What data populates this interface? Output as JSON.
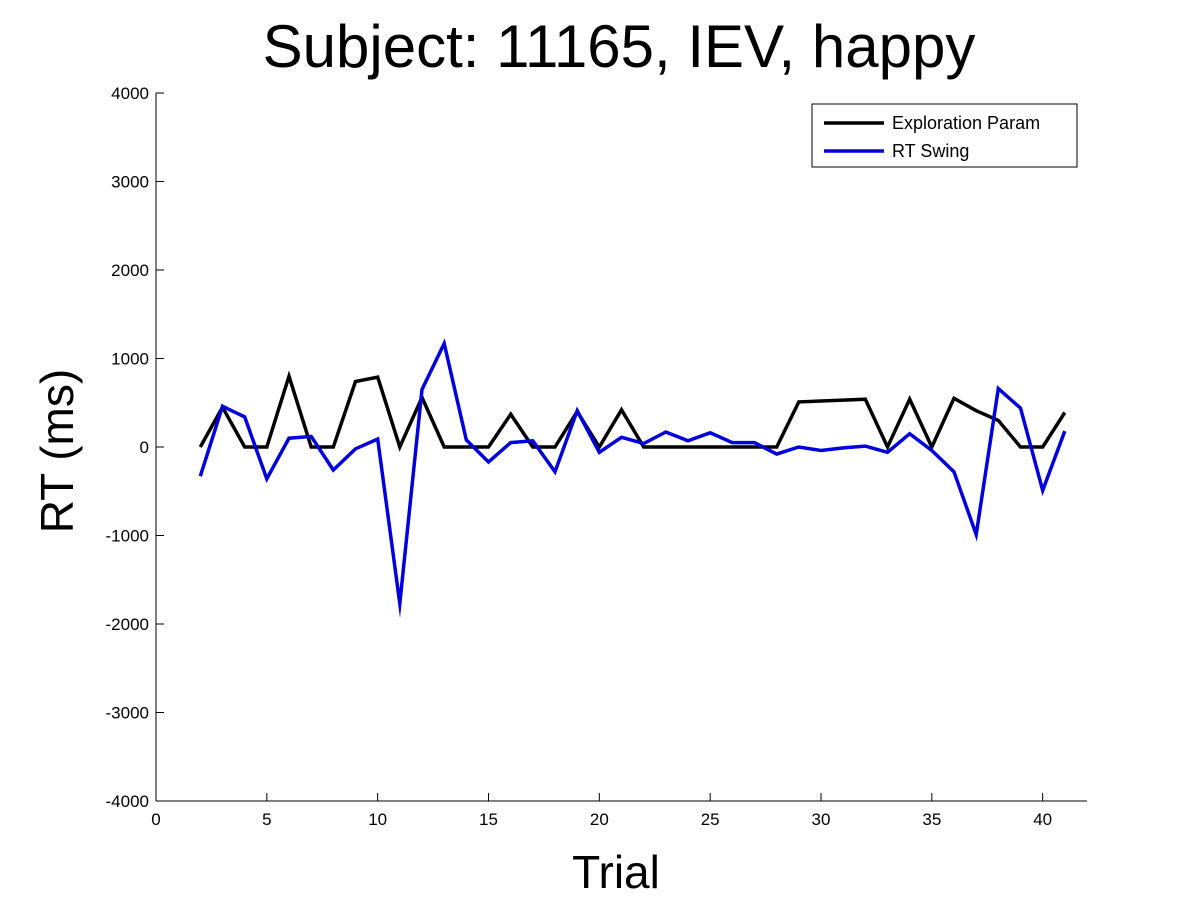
{
  "chart_data": {
    "type": "line",
    "title": "Subject: 11165, IEV, happy",
    "xlabel": "Trial",
    "ylabel": "RT (ms)",
    "xlim": [
      0,
      42
    ],
    "ylim": [
      -4000,
      4000
    ],
    "xticks": [
      0,
      5,
      10,
      15,
      20,
      25,
      30,
      35,
      40
    ],
    "yticks": [
      -4000,
      -3000,
      -2000,
      -1000,
      0,
      1000,
      2000,
      3000,
      4000
    ],
    "grid": false,
    "legend_position": "top-right",
    "x": [
      2,
      3,
      4,
      5,
      6,
      7,
      8,
      9,
      10,
      11,
      12,
      13,
      14,
      15,
      16,
      17,
      18,
      19,
      20,
      21,
      22,
      23,
      24,
      25,
      26,
      27,
      28,
      29,
      30,
      31,
      32,
      33,
      34,
      35,
      36,
      37,
      38,
      39,
      40,
      41
    ],
    "series": [
      {
        "name": "Exploration Param",
        "color": "#000000",
        "values": [
          0,
          450,
          0,
          0,
          800,
          0,
          0,
          740,
          790,
          0,
          560,
          0,
          0,
          0,
          370,
          0,
          0,
          400,
          0,
          420,
          0,
          0,
          0,
          0,
          0,
          0,
          0,
          510,
          520,
          530,
          540,
          0,
          540,
          0,
          550,
          410,
          300,
          0,
          0,
          390
        ]
      },
      {
        "name": "RT Swing",
        "color": "#0000dd",
        "values": [
          -330,
          460,
          340,
          -360,
          100,
          120,
          -260,
          -20,
          90,
          -1770,
          650,
          1170,
          80,
          -170,
          50,
          70,
          -280,
          410,
          -60,
          110,
          40,
          170,
          70,
          160,
          50,
          50,
          -80,
          0,
          -40,
          -10,
          10,
          -60,
          150,
          -40,
          -280,
          -990,
          660,
          440,
          -490,
          180
        ]
      }
    ]
  }
}
